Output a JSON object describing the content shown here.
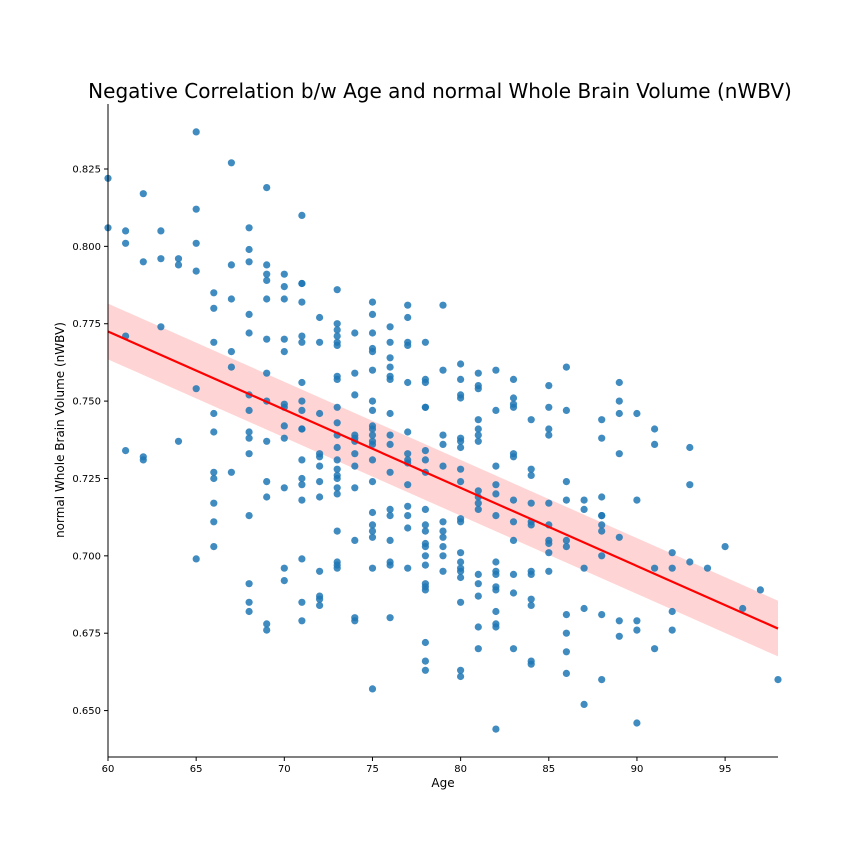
{
  "chart_data": {
    "type": "scatter",
    "title": "Negative Correlation b/w Age and normal Whole Brain Volume (nWBV)",
    "xlabel": "Age",
    "ylabel": "normal Whole Brain Volume (nWBV)",
    "xlim": [
      60,
      98
    ],
    "ylim": [
      0.635,
      0.846
    ],
    "xticks": [
      60,
      65,
      70,
      75,
      80,
      85,
      90,
      95
    ],
    "xtick_labels": [
      "60",
      "65",
      "70",
      "75",
      "80",
      "85",
      "90",
      "95"
    ],
    "yticks": [
      0.65,
      0.675,
      0.7,
      0.725,
      0.75,
      0.775,
      0.8,
      0.825
    ],
    "ytick_labels": [
      "0.650",
      "0.675",
      "0.700",
      "0.725",
      "0.750",
      "0.775",
      "0.800",
      "0.825"
    ],
    "grid": false,
    "point_color": "#1f77b4",
    "regression": {
      "color": "#ff0000",
      "band_color": "#ffcccc",
      "x": [
        60,
        98
      ],
      "y": [
        0.7725,
        0.6765
      ],
      "ci_lower": [
        0.7635,
        0.6675
      ],
      "ci_upper": [
        0.7815,
        0.6855
      ]
    },
    "points": [
      [
        60,
        0.822
      ],
      [
        60,
        0.806
      ],
      [
        61,
        0.805
      ],
      [
        61,
        0.801
      ],
      [
        61,
        0.771
      ],
      [
        61,
        0.734
      ],
      [
        62,
        0.817
      ],
      [
        62,
        0.795
      ],
      [
        62,
        0.732
      ],
      [
        62,
        0.731
      ],
      [
        63,
        0.805
      ],
      [
        63,
        0.796
      ],
      [
        63,
        0.774
      ],
      [
        64,
        0.796
      ],
      [
        64,
        0.794
      ],
      [
        64,
        0.737
      ],
      [
        65,
        0.837
      ],
      [
        65,
        0.812
      ],
      [
        65,
        0.801
      ],
      [
        65,
        0.792
      ],
      [
        65,
        0.754
      ],
      [
        65,
        0.699
      ],
      [
        66,
        0.785
      ],
      [
        66,
        0.78
      ],
      [
        66,
        0.769
      ],
      [
        66,
        0.746
      ],
      [
        66,
        0.74
      ],
      [
        66,
        0.727
      ],
      [
        66,
        0.725
      ],
      [
        66,
        0.717
      ],
      [
        66,
        0.711
      ],
      [
        66,
        0.703
      ],
      [
        67,
        0.827
      ],
      [
        67,
        0.794
      ],
      [
        67,
        0.783
      ],
      [
        67,
        0.766
      ],
      [
        67,
        0.761
      ],
      [
        67,
        0.727
      ],
      [
        68,
        0.806
      ],
      [
        68,
        0.799
      ],
      [
        68,
        0.795
      ],
      [
        68,
        0.778
      ],
      [
        68,
        0.772
      ],
      [
        68,
        0.752
      ],
      [
        68,
        0.747
      ],
      [
        68,
        0.74
      ],
      [
        68,
        0.738
      ],
      [
        68,
        0.733
      ],
      [
        68,
        0.713
      ],
      [
        68,
        0.691
      ],
      [
        68,
        0.685
      ],
      [
        68,
        0.682
      ],
      [
        69,
        0.819
      ],
      [
        69,
        0.794
      ],
      [
        69,
        0.791
      ],
      [
        69,
        0.789
      ],
      [
        69,
        0.783
      ],
      [
        69,
        0.77
      ],
      [
        69,
        0.759
      ],
      [
        69,
        0.75
      ],
      [
        69,
        0.737
      ],
      [
        69,
        0.724
      ],
      [
        69,
        0.719
      ],
      [
        69,
        0.678
      ],
      [
        69,
        0.676
      ],
      [
        70,
        0.791
      ],
      [
        70,
        0.787
      ],
      [
        70,
        0.783
      ],
      [
        70,
        0.77
      ],
      [
        70,
        0.766
      ],
      [
        70,
        0.749
      ],
      [
        70,
        0.748
      ],
      [
        70,
        0.742
      ],
      [
        70,
        0.738
      ],
      [
        70,
        0.722
      ],
      [
        70,
        0.696
      ],
      [
        70,
        0.692
      ],
      [
        71,
        0.81
      ],
      [
        71,
        0.788
      ],
      [
        71,
        0.788
      ],
      [
        71,
        0.782
      ],
      [
        71,
        0.771
      ],
      [
        71,
        0.769
      ],
      [
        71,
        0.756
      ],
      [
        71,
        0.75
      ],
      [
        71,
        0.747
      ],
      [
        71,
        0.741
      ],
      [
        71,
        0.741
      ],
      [
        71,
        0.731
      ],
      [
        71,
        0.725
      ],
      [
        71,
        0.723
      ],
      [
        71,
        0.718
      ],
      [
        71,
        0.699
      ],
      [
        71,
        0.685
      ],
      [
        71,
        0.679
      ],
      [
        72,
        0.777
      ],
      [
        72,
        0.769
      ],
      [
        72,
        0.746
      ],
      [
        72,
        0.733
      ],
      [
        72,
        0.732
      ],
      [
        72,
        0.729
      ],
      [
        72,
        0.724
      ],
      [
        72,
        0.719
      ],
      [
        72,
        0.695
      ],
      [
        72,
        0.687
      ],
      [
        72,
        0.686
      ],
      [
        72,
        0.684
      ],
      [
        73,
        0.786
      ],
      [
        73,
        0.775
      ],
      [
        73,
        0.773
      ],
      [
        73,
        0.771
      ],
      [
        73,
        0.769
      ],
      [
        73,
        0.768
      ],
      [
        73,
        0.758
      ],
      [
        73,
        0.757
      ],
      [
        73,
        0.748
      ],
      [
        73,
        0.743
      ],
      [
        73,
        0.739
      ],
      [
        73,
        0.735
      ],
      [
        73,
        0.731
      ],
      [
        73,
        0.728
      ],
      [
        73,
        0.726
      ],
      [
        73,
        0.725
      ],
      [
        73,
        0.722
      ],
      [
        73,
        0.72
      ],
      [
        73,
        0.708
      ],
      [
        73,
        0.698
      ],
      [
        73,
        0.697
      ],
      [
        73,
        0.696
      ],
      [
        74,
        0.772
      ],
      [
        74,
        0.759
      ],
      [
        74,
        0.752
      ],
      [
        74,
        0.739
      ],
      [
        74,
        0.738
      ],
      [
        74,
        0.737
      ],
      [
        74,
        0.733
      ],
      [
        74,
        0.729
      ],
      [
        74,
        0.722
      ],
      [
        74,
        0.705
      ],
      [
        74,
        0.68
      ],
      [
        74,
        0.679
      ],
      [
        75,
        0.782
      ],
      [
        75,
        0.778
      ],
      [
        75,
        0.772
      ],
      [
        75,
        0.767
      ],
      [
        75,
        0.766
      ],
      [
        75,
        0.76
      ],
      [
        75,
        0.75
      ],
      [
        75,
        0.747
      ],
      [
        75,
        0.742
      ],
      [
        75,
        0.741
      ],
      [
        75,
        0.739
      ],
      [
        75,
        0.737
      ],
      [
        75,
        0.736
      ],
      [
        75,
        0.731
      ],
      [
        75,
        0.724
      ],
      [
        75,
        0.714
      ],
      [
        75,
        0.71
      ],
      [
        75,
        0.708
      ],
      [
        75,
        0.706
      ],
      [
        75,
        0.696
      ],
      [
        75,
        0.657
      ],
      [
        76,
        0.774
      ],
      [
        76,
        0.769
      ],
      [
        76,
        0.764
      ],
      [
        76,
        0.761
      ],
      [
        76,
        0.758
      ],
      [
        76,
        0.757
      ],
      [
        76,
        0.746
      ],
      [
        76,
        0.739
      ],
      [
        76,
        0.736
      ],
      [
        76,
        0.727
      ],
      [
        76,
        0.715
      ],
      [
        76,
        0.713
      ],
      [
        76,
        0.705
      ],
      [
        76,
        0.698
      ],
      [
        76,
        0.697
      ],
      [
        76,
        0.68
      ],
      [
        77,
        0.781
      ],
      [
        77,
        0.777
      ],
      [
        77,
        0.769
      ],
      [
        77,
        0.768
      ],
      [
        77,
        0.756
      ],
      [
        77,
        0.74
      ],
      [
        77,
        0.733
      ],
      [
        77,
        0.731
      ],
      [
        77,
        0.73
      ],
      [
        77,
        0.723
      ],
      [
        77,
        0.716
      ],
      [
        77,
        0.713
      ],
      [
        77,
        0.709
      ],
      [
        77,
        0.696
      ],
      [
        78,
        0.769
      ],
      [
        78,
        0.757
      ],
      [
        78,
        0.756
      ],
      [
        78,
        0.748
      ],
      [
        78,
        0.748
      ],
      [
        78,
        0.734
      ],
      [
        78,
        0.731
      ],
      [
        78,
        0.727
      ],
      [
        78,
        0.715
      ],
      [
        78,
        0.71
      ],
      [
        78,
        0.708
      ],
      [
        78,
        0.704
      ],
      [
        78,
        0.703
      ],
      [
        78,
        0.7
      ],
      [
        78,
        0.697
      ],
      [
        78,
        0.691
      ],
      [
        78,
        0.69
      ],
      [
        78,
        0.689
      ],
      [
        78,
        0.672
      ],
      [
        78,
        0.666
      ],
      [
        78,
        0.663
      ],
      [
        79,
        0.781
      ],
      [
        79,
        0.76
      ],
      [
        79,
        0.739
      ],
      [
        79,
        0.736
      ],
      [
        79,
        0.729
      ],
      [
        79,
        0.711
      ],
      [
        79,
        0.708
      ],
      [
        79,
        0.706
      ],
      [
        79,
        0.703
      ],
      [
        79,
        0.7
      ],
      [
        79,
        0.695
      ],
      [
        80,
        0.762
      ],
      [
        80,
        0.757
      ],
      [
        80,
        0.752
      ],
      [
        80,
        0.751
      ],
      [
        80,
        0.738
      ],
      [
        80,
        0.737
      ],
      [
        80,
        0.735
      ],
      [
        80,
        0.728
      ],
      [
        80,
        0.724
      ],
      [
        80,
        0.712
      ],
      [
        80,
        0.711
      ],
      [
        80,
        0.701
      ],
      [
        80,
        0.698
      ],
      [
        80,
        0.696
      ],
      [
        80,
        0.695
      ],
      [
        80,
        0.693
      ],
      [
        80,
        0.685
      ],
      [
        80,
        0.663
      ],
      [
        80,
        0.661
      ],
      [
        81,
        0.759
      ],
      [
        81,
        0.755
      ],
      [
        81,
        0.754
      ],
      [
        81,
        0.744
      ],
      [
        81,
        0.741
      ],
      [
        81,
        0.739
      ],
      [
        81,
        0.737
      ],
      [
        81,
        0.721
      ],
      [
        81,
        0.719
      ],
      [
        81,
        0.717
      ],
      [
        81,
        0.715
      ],
      [
        81,
        0.694
      ],
      [
        81,
        0.691
      ],
      [
        81,
        0.687
      ],
      [
        81,
        0.677
      ],
      [
        81,
        0.67
      ],
      [
        82,
        0.76
      ],
      [
        82,
        0.747
      ],
      [
        82,
        0.729
      ],
      [
        82,
        0.723
      ],
      [
        82,
        0.72
      ],
      [
        82,
        0.713
      ],
      [
        82,
        0.698
      ],
      [
        82,
        0.695
      ],
      [
        82,
        0.694
      ],
      [
        82,
        0.69
      ],
      [
        82,
        0.689
      ],
      [
        82,
        0.682
      ],
      [
        82,
        0.678
      ],
      [
        82,
        0.677
      ],
      [
        82,
        0.644
      ],
      [
        83,
        0.757
      ],
      [
        83,
        0.751
      ],
      [
        83,
        0.749
      ],
      [
        83,
        0.748
      ],
      [
        83,
        0.733
      ],
      [
        83,
        0.732
      ],
      [
        83,
        0.718
      ],
      [
        83,
        0.711
      ],
      [
        83,
        0.705
      ],
      [
        83,
        0.694
      ],
      [
        83,
        0.688
      ],
      [
        83,
        0.67
      ],
      [
        84,
        0.744
      ],
      [
        84,
        0.728
      ],
      [
        84,
        0.726
      ],
      [
        84,
        0.717
      ],
      [
        84,
        0.711
      ],
      [
        84,
        0.71
      ],
      [
        84,
        0.695
      ],
      [
        84,
        0.694
      ],
      [
        84,
        0.686
      ],
      [
        84,
        0.684
      ],
      [
        84,
        0.666
      ],
      [
        84,
        0.665
      ],
      [
        85,
        0.755
      ],
      [
        85,
        0.748
      ],
      [
        85,
        0.741
      ],
      [
        85,
        0.739
      ],
      [
        85,
        0.717
      ],
      [
        85,
        0.71
      ],
      [
        85,
        0.705
      ],
      [
        85,
        0.704
      ],
      [
        85,
        0.701
      ],
      [
        85,
        0.695
      ],
      [
        86,
        0.761
      ],
      [
        86,
        0.747
      ],
      [
        86,
        0.724
      ],
      [
        86,
        0.718
      ],
      [
        86,
        0.705
      ],
      [
        86,
        0.703
      ],
      [
        86,
        0.681
      ],
      [
        86,
        0.675
      ],
      [
        86,
        0.669
      ],
      [
        86,
        0.662
      ],
      [
        87,
        0.718
      ],
      [
        87,
        0.715
      ],
      [
        87,
        0.696
      ],
      [
        87,
        0.683
      ],
      [
        87,
        0.652
      ],
      [
        88,
        0.744
      ],
      [
        88,
        0.738
      ],
      [
        88,
        0.719
      ],
      [
        88,
        0.713
      ],
      [
        88,
        0.713
      ],
      [
        88,
        0.71
      ],
      [
        88,
        0.708
      ],
      [
        88,
        0.7
      ],
      [
        88,
        0.681
      ],
      [
        88,
        0.66
      ],
      [
        89,
        0.756
      ],
      [
        89,
        0.75
      ],
      [
        89,
        0.746
      ],
      [
        89,
        0.733
      ],
      [
        89,
        0.706
      ],
      [
        89,
        0.679
      ],
      [
        89,
        0.674
      ],
      [
        90,
        0.746
      ],
      [
        90,
        0.718
      ],
      [
        90,
        0.679
      ],
      [
        90,
        0.676
      ],
      [
        90,
        0.646
      ],
      [
        91,
        0.741
      ],
      [
        91,
        0.736
      ],
      [
        91,
        0.696
      ],
      [
        91,
        0.67
      ],
      [
        92,
        0.701
      ],
      [
        92,
        0.696
      ],
      [
        92,
        0.682
      ],
      [
        92,
        0.676
      ],
      [
        93,
        0.735
      ],
      [
        93,
        0.723
      ],
      [
        93,
        0.698
      ],
      [
        94,
        0.696
      ],
      [
        95,
        0.703
      ],
      [
        96,
        0.683
      ],
      [
        97,
        0.689
      ],
      [
        98,
        0.66
      ]
    ]
  }
}
